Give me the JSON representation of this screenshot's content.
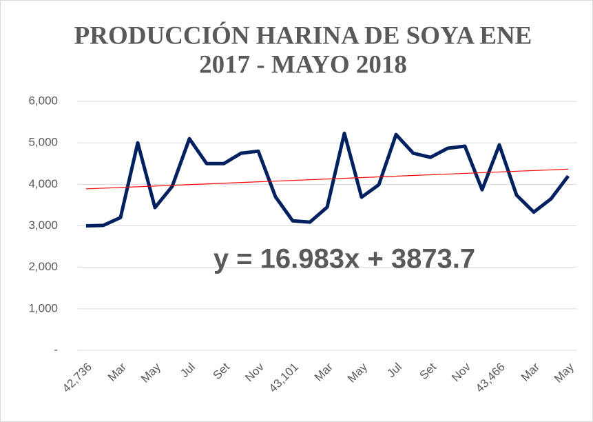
{
  "chart_data": {
    "type": "line",
    "title": [
      "PRODUCCIÓN HARINA DE SOYA ENE",
      "2017 - MAYO 2018"
    ],
    "categories": [
      "42,736",
      null,
      "Mar",
      null,
      "May",
      null,
      "Jul",
      null,
      "Set",
      null,
      "Nov",
      null,
      "43,101",
      null,
      "Mar",
      null,
      "May",
      null,
      "Jul",
      null,
      "Set",
      null,
      "Nov",
      null,
      "43,466",
      null,
      "Mar",
      null,
      "May"
    ],
    "series": [
      {
        "color": "#002060",
        "values": [
          3000,
          3010,
          3200,
          5000,
          3440,
          3950,
          5100,
          4500,
          4500,
          4750,
          4800,
          3700,
          3120,
          3090,
          3450,
          5230,
          3690,
          3990,
          5200,
          4750,
          4650,
          4870,
          4920,
          3870,
          4950,
          3740,
          3330,
          3650,
          4200
        ]
      }
    ],
    "trendline": {
      "color": "#ff0000",
      "slope": 16.983,
      "intercept": 3873.7,
      "label": "y = 16.983x + 3873.7"
    },
    "ylim": [
      0,
      6000
    ],
    "yticks": [
      {
        "value": 0,
        "label": "-"
      },
      {
        "value": 1000,
        "label": "1,000"
      },
      {
        "value": 2000,
        "label": "2,000"
      },
      {
        "value": 3000,
        "label": "3,000"
      },
      {
        "value": 4000,
        "label": "4,000"
      },
      {
        "value": 5000,
        "label": "5,000"
      },
      {
        "value": 6000,
        "label": "6,000"
      }
    ],
    "grid": true
  }
}
